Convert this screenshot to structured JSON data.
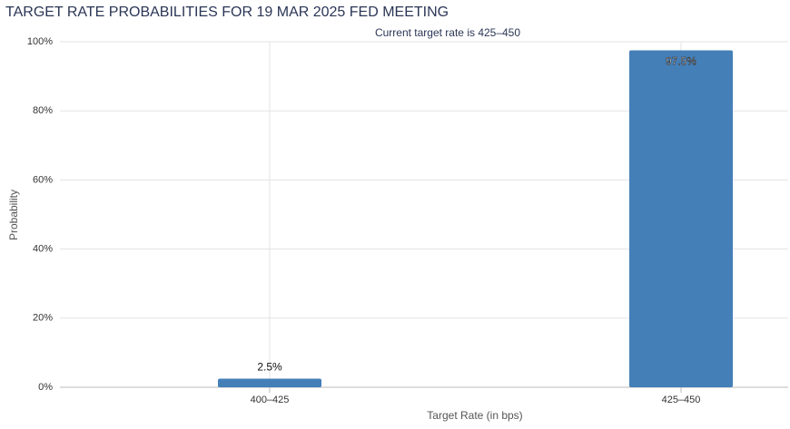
{
  "chart_data": {
    "type": "bar",
    "title": "TARGET RATE PROBABILITIES FOR 19 MAR 2025 FED MEETING",
    "subtitle": "Current target rate is 425–450",
    "x_label": "Target Rate (in bps)",
    "y_label": "Probability",
    "categories": [
      "400–425",
      "425–450"
    ],
    "values": [
      2.5,
      97.5
    ],
    "value_labels": [
      "2.5%",
      "97.5%"
    ],
    "color": "#447fb8",
    "ylim": [
      0,
      100
    ],
    "yticks": [
      {
        "value": 0,
        "label": "0%"
      },
      {
        "value": 20,
        "label": "20%"
      },
      {
        "value": 40,
        "label": "40%"
      },
      {
        "value": 60,
        "label": "60%"
      },
      {
        "value": 80,
        "label": "80%"
      },
      {
        "value": 100,
        "label": "100%"
      }
    ],
    "grid": true
  }
}
